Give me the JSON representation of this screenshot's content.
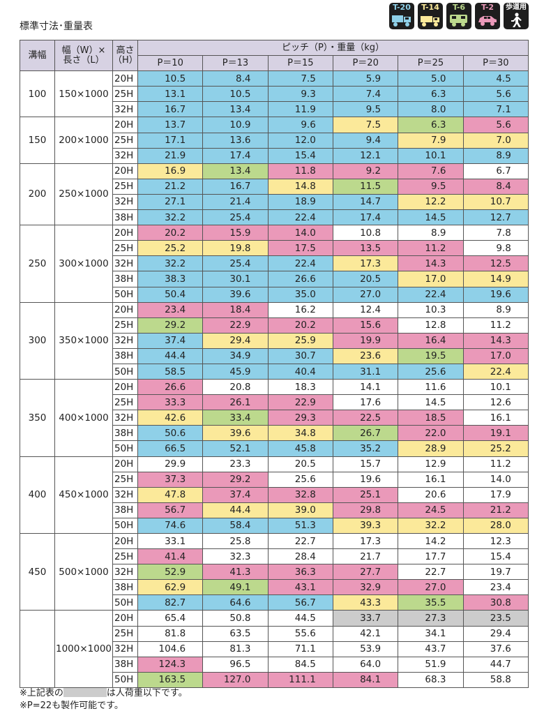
{
  "title": "標準寸法･重量表",
  "legend": [
    {
      "label": "T-20",
      "color": "#8fd0e8",
      "label_color": "#8fd0e8",
      "icon": "dump-truck-icon"
    },
    {
      "label": "T-14",
      "color": "#fbe99a",
      "label_color": "#fbe99a",
      "icon": "truck-icon"
    },
    {
      "label": "T-6",
      "color": "#bcd98d",
      "label_color": "#bcd98d",
      "icon": "van-icon"
    },
    {
      "label": "T-2",
      "color": "#ea99b9",
      "label_color": "#ea99b9",
      "icon": "car-icon"
    },
    {
      "label": "歩道用",
      "color": "#ffffff",
      "label_color": "#ffffff",
      "icon": "pedestrian-icon"
    }
  ],
  "table": {
    "header": {
      "width": "溝幅",
      "size_line1": "幅（W）×",
      "size_line2": "長さ（L）",
      "height_line1": "高さ",
      "height_line2": "（H）",
      "pitch_group": "ピッチ（P）・重量（kg）",
      "pitches": [
        "P＝10",
        "P＝13",
        "P＝15",
        "P＝20",
        "P＝25",
        "P＝30"
      ]
    },
    "groups": [
      {
        "width": "100",
        "size": "150×1000",
        "rows": [
          {
            "h": "20H",
            "v": [
              "10.5",
              "8.4",
              "7.5",
              "5.9",
              "5.0",
              "4.5"
            ],
            "c": [
              "b",
              "b",
              "b",
              "b",
              "b",
              "b"
            ]
          },
          {
            "h": "25H",
            "v": [
              "13.1",
              "10.5",
              "9.3",
              "7.4",
              "6.3",
              "5.6"
            ],
            "c": [
              "b",
              "b",
              "b",
              "b",
              "b",
              "b"
            ]
          },
          {
            "h": "32H",
            "v": [
              "16.7",
              "13.4",
              "11.9",
              "9.5",
              "8.0",
              "7.1"
            ],
            "c": [
              "b",
              "b",
              "b",
              "b",
              "b",
              "b"
            ]
          }
        ]
      },
      {
        "width": "150",
        "size": "200×1000",
        "rows": [
          {
            "h": "20H",
            "v": [
              "13.7",
              "10.9",
              "9.6",
              "7.5",
              "6.3",
              "5.6"
            ],
            "c": [
              "b",
              "b",
              "b",
              "y",
              "g",
              "p"
            ]
          },
          {
            "h": "25H",
            "v": [
              "17.1",
              "13.6",
              "12.0",
              "9.4",
              "7.9",
              "7.0"
            ],
            "c": [
              "b",
              "b",
              "b",
              "b",
              "y",
              "y"
            ]
          },
          {
            "h": "32H",
            "v": [
              "21.9",
              "17.4",
              "15.4",
              "12.1",
              "10.1",
              "8.9"
            ],
            "c": [
              "b",
              "b",
              "b",
              "b",
              "b",
              "b"
            ]
          }
        ]
      },
      {
        "width": "200",
        "size": "250×1000",
        "rows": [
          {
            "h": "20H",
            "v": [
              "16.9",
              "13.4",
              "11.8",
              "9.2",
              "7.6",
              "6.7"
            ],
            "c": [
              "y",
              "g",
              "p",
              "p",
              "p",
              "w"
            ]
          },
          {
            "h": "25H",
            "v": [
              "21.2",
              "16.7",
              "14.8",
              "11.5",
              "9.5",
              "8.4"
            ],
            "c": [
              "b",
              "b",
              "y",
              "g",
              "p",
              "p"
            ]
          },
          {
            "h": "32H",
            "v": [
              "27.1",
              "21.4",
              "18.9",
              "14.7",
              "12.2",
              "10.7"
            ],
            "c": [
              "b",
              "b",
              "b",
              "b",
              "y",
              "y"
            ]
          },
          {
            "h": "38H",
            "v": [
              "32.2",
              "25.4",
              "22.4",
              "17.4",
              "14.5",
              "12.7"
            ],
            "c": [
              "b",
              "b",
              "b",
              "b",
              "b",
              "b"
            ]
          }
        ]
      },
      {
        "width": "250",
        "size": "300×1000",
        "rows": [
          {
            "h": "20H",
            "v": [
              "20.2",
              "15.9",
              "14.0",
              "10.8",
              "8.9",
              "7.8"
            ],
            "c": [
              "p",
              "p",
              "p",
              "w",
              "w",
              "w"
            ]
          },
          {
            "h": "25H",
            "v": [
              "25.2",
              "19.8",
              "17.5",
              "13.5",
              "11.2",
              "9.8"
            ],
            "c": [
              "y",
              "y",
              "p",
              "p",
              "p",
              "w"
            ]
          },
          {
            "h": "32H",
            "v": [
              "32.2",
              "25.4",
              "22.4",
              "17.3",
              "14.3",
              "12.5"
            ],
            "c": [
              "b",
              "b",
              "b",
              "y",
              "p",
              "p"
            ]
          },
          {
            "h": "38H",
            "v": [
              "38.3",
              "30.1",
              "26.6",
              "20.5",
              "17.0",
              "14.9"
            ],
            "c": [
              "b",
              "b",
              "b",
              "b",
              "y",
              "y"
            ]
          },
          {
            "h": "50H",
            "v": [
              "50.4",
              "39.6",
              "35.0",
              "27.0",
              "22.4",
              "19.6"
            ],
            "c": [
              "b",
              "b",
              "b",
              "b",
              "b",
              "b"
            ]
          }
        ]
      },
      {
        "width": "300",
        "size": "350×1000",
        "rows": [
          {
            "h": "20H",
            "v": [
              "23.4",
              "18.4",
              "16.2",
              "12.4",
              "10.3",
              "8.9"
            ],
            "c": [
              "p",
              "p",
              "w",
              "w",
              "w",
              "w"
            ]
          },
          {
            "h": "25H",
            "v": [
              "29.2",
              "22.9",
              "20.2",
              "15.6",
              "12.8",
              "11.2"
            ],
            "c": [
              "g",
              "p",
              "p",
              "p",
              "w",
              "w"
            ]
          },
          {
            "h": "32H",
            "v": [
              "37.4",
              "29.4",
              "25.9",
              "19.9",
              "16.4",
              "14.3"
            ],
            "c": [
              "b",
              "y",
              "y",
              "p",
              "p",
              "p"
            ]
          },
          {
            "h": "38H",
            "v": [
              "44.4",
              "34.9",
              "30.7",
              "23.6",
              "19.5",
              "17.0"
            ],
            "c": [
              "b",
              "b",
              "b",
              "y",
              "g",
              "p"
            ]
          },
          {
            "h": "50H",
            "v": [
              "58.5",
              "45.9",
              "40.4",
              "31.1",
              "25.6",
              "22.4"
            ],
            "c": [
              "b",
              "b",
              "b",
              "b",
              "b",
              "y"
            ]
          }
        ]
      },
      {
        "width": "350",
        "size": "400×1000",
        "rows": [
          {
            "h": "20H",
            "v": [
              "26.6",
              "20.8",
              "18.3",
              "14.1",
              "11.6",
              "10.1"
            ],
            "c": [
              "p",
              "w",
              "w",
              "w",
              "w",
              "w"
            ]
          },
          {
            "h": "25H",
            "v": [
              "33.3",
              "26.1",
              "22.9",
              "17.6",
              "14.5",
              "12.6"
            ],
            "c": [
              "p",
              "p",
              "p",
              "w",
              "w",
              "w"
            ]
          },
          {
            "h": "32H",
            "v": [
              "42.6",
              "33.4",
              "29.3",
              "22.5",
              "18.5",
              "16.1"
            ],
            "c": [
              "y",
              "g",
              "p",
              "p",
              "p",
              "w"
            ]
          },
          {
            "h": "38H",
            "v": [
              "50.6",
              "39.6",
              "34.8",
              "26.7",
              "22.0",
              "19.1"
            ],
            "c": [
              "b",
              "y",
              "y",
              "g",
              "p",
              "p"
            ]
          },
          {
            "h": "50H",
            "v": [
              "66.5",
              "52.1",
              "45.8",
              "35.2",
              "28.9",
              "25.2"
            ],
            "c": [
              "b",
              "b",
              "b",
              "b",
              "y",
              "y"
            ]
          }
        ]
      },
      {
        "width": "400",
        "size": "450×1000",
        "rows": [
          {
            "h": "20H",
            "v": [
              "29.9",
              "23.3",
              "20.5",
              "15.7",
              "12.9",
              "11.2"
            ],
            "c": [
              "w",
              "w",
              "w",
              "w",
              "w",
              "w"
            ]
          },
          {
            "h": "25H",
            "v": [
              "37.3",
              "29.2",
              "25.6",
              "19.6",
              "16.1",
              "14.0"
            ],
            "c": [
              "p",
              "p",
              "w",
              "w",
              "w",
              "w"
            ]
          },
          {
            "h": "32H",
            "v": [
              "47.8",
              "37.4",
              "32.8",
              "25.1",
              "20.6",
              "17.9"
            ],
            "c": [
              "y",
              "p",
              "p",
              "p",
              "w",
              "w"
            ]
          },
          {
            "h": "38H",
            "v": [
              "56.7",
              "44.4",
              "39.0",
              "29.8",
              "24.5",
              "21.2"
            ],
            "c": [
              "p",
              "y",
              "y",
              "p",
              "p",
              "p"
            ]
          },
          {
            "h": "50H",
            "v": [
              "74.6",
              "58.4",
              "51.3",
              "39.3",
              "32.2",
              "28.0"
            ],
            "c": [
              "b",
              "b",
              "b",
              "y",
              "y",
              "y"
            ]
          }
        ]
      },
      {
        "width": "450",
        "size": "500×1000",
        "rows": [
          {
            "h": "20H",
            "v": [
              "33.1",
              "25.8",
              "22.7",
              "17.3",
              "14.2",
              "12.3"
            ],
            "c": [
              "w",
              "w",
              "w",
              "w",
              "w",
              "w"
            ]
          },
          {
            "h": "25H",
            "v": [
              "41.4",
              "32.3",
              "28.4",
              "21.7",
              "17.7",
              "15.4"
            ],
            "c": [
              "p",
              "w",
              "w",
              "w",
              "w",
              "w"
            ]
          },
          {
            "h": "32H",
            "v": [
              "52.9",
              "41.3",
              "36.3",
              "27.7",
              "22.7",
              "19.7"
            ],
            "c": [
              "g",
              "p",
              "p",
              "p",
              "w",
              "w"
            ]
          },
          {
            "h": "38H",
            "v": [
              "62.9",
              "49.1",
              "43.1",
              "32.9",
              "27.0",
              "23.4"
            ],
            "c": [
              "y",
              "g",
              "p",
              "p",
              "p",
              "w"
            ]
          },
          {
            "h": "50H",
            "v": [
              "82.7",
              "64.6",
              "56.7",
              "43.3",
              "35.5",
              "30.8"
            ],
            "c": [
              "b",
              "b",
              "b",
              "y",
              "g",
              "p"
            ]
          }
        ]
      },
      {
        "width": "",
        "size": "1000×1000",
        "rows": [
          {
            "h": "20H",
            "v": [
              "65.4",
              "50.8",
              "44.5",
              "33.7",
              "27.3",
              "23.5"
            ],
            "c": [
              "w",
              "w",
              "w",
              "x",
              "x",
              "x"
            ]
          },
          {
            "h": "25H",
            "v": [
              "81.8",
              "63.5",
              "55.6",
              "42.1",
              "34.1",
              "29.4"
            ],
            "c": [
              "w",
              "w",
              "w",
              "w",
              "w",
              "w"
            ]
          },
          {
            "h": "32H",
            "v": [
              "104.6",
              "81.3",
              "71.1",
              "53.9",
              "43.7",
              "37.6"
            ],
            "c": [
              "w",
              "w",
              "w",
              "w",
              "w",
              "w"
            ]
          },
          {
            "h": "38H",
            "v": [
              "124.3",
              "96.5",
              "84.5",
              "64.0",
              "51.9",
              "44.7"
            ],
            "c": [
              "p",
              "w",
              "w",
              "w",
              "w",
              "w"
            ]
          },
          {
            "h": "50H",
            "v": [
              "163.5",
              "127.0",
              "111.1",
              "84.1",
              "68.3",
              "58.8"
            ],
            "c": [
              "g",
              "p",
              "p",
              "p",
              "w",
              "w"
            ]
          }
        ]
      }
    ]
  },
  "notes": {
    "note1_before": "※上記表の",
    "note1_after": "は人荷重以下です。",
    "note2": "※P=22も製作可能です。",
    "swatch_color": "#cccccc"
  }
}
